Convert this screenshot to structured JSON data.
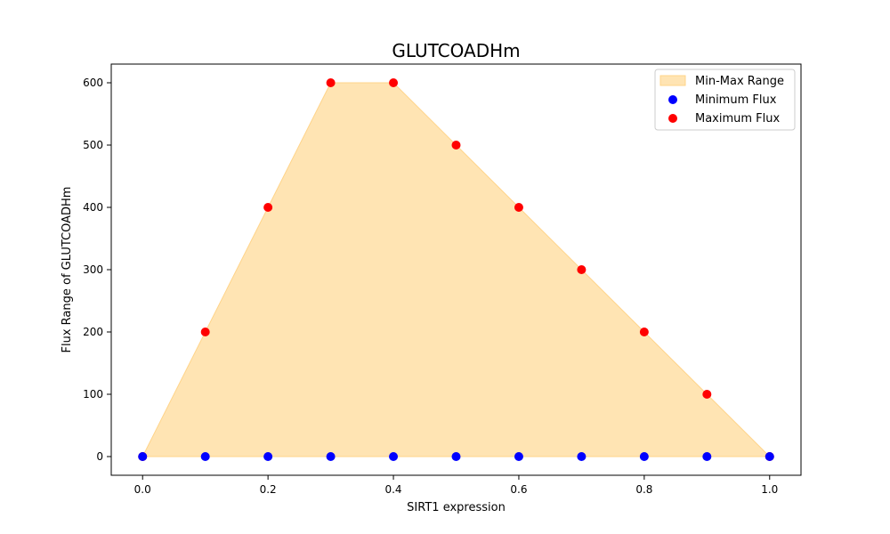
{
  "chart_data": {
    "type": "scatter",
    "title": "GLUTCOADHm",
    "xlabel": "SIRT1 expression",
    "ylabel": "Flux Range of GLUTCOADHm",
    "xlim": [
      -0.05,
      1.05
    ],
    "ylim": [
      -30,
      630
    ],
    "x_ticks": [
      "0.0",
      "0.2",
      "0.4",
      "0.6",
      "0.8",
      "1.0"
    ],
    "y_ticks": [
      "0",
      "100",
      "200",
      "300",
      "400",
      "500",
      "600"
    ],
    "grid": false,
    "legend_position": "top-right",
    "x": [
      0.0,
      0.1,
      0.2,
      0.3,
      0.4,
      0.5,
      0.6,
      0.7,
      0.8,
      0.9,
      1.0
    ],
    "range_fill": {
      "name": "Min-Max Range",
      "color": "#ffe4b3",
      "edge_color": "#ffd48a"
    },
    "series": [
      {
        "name": "Minimum Flux",
        "color": "#0000ff",
        "values": [
          0,
          0,
          0,
          0,
          0,
          0,
          0,
          0,
          0,
          0,
          0
        ]
      },
      {
        "name": "Maximum Flux",
        "color": "#ff0000",
        "values": [
          0,
          200,
          400,
          600,
          600,
          500,
          400,
          300,
          200,
          100,
          0
        ]
      }
    ]
  }
}
